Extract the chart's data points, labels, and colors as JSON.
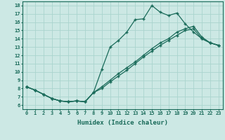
{
  "xlabel": "Humidex (Indice chaleur)",
  "bg_color": "#cce8e4",
  "line_color": "#1a6b5a",
  "grid_color": "#aad4ce",
  "xlim": [
    -0.5,
    23.5
  ],
  "ylim": [
    5.5,
    18.5
  ],
  "xticks": [
    0,
    1,
    2,
    3,
    4,
    5,
    6,
    7,
    8,
    9,
    10,
    11,
    12,
    13,
    14,
    15,
    16,
    17,
    18,
    19,
    20,
    21,
    22,
    23
  ],
  "yticks": [
    6,
    7,
    8,
    9,
    10,
    11,
    12,
    13,
    14,
    15,
    16,
    17,
    18
  ],
  "line1_x": [
    0,
    1,
    2,
    3,
    4,
    5,
    6,
    7,
    8,
    9,
    10,
    11,
    12,
    13,
    14,
    15,
    16,
    17,
    18,
    19,
    20,
    21,
    22,
    23
  ],
  "line1_y": [
    8.2,
    7.8,
    7.3,
    6.8,
    6.5,
    6.4,
    6.5,
    6.4,
    7.5,
    10.3,
    13.0,
    13.8,
    14.8,
    16.3,
    16.4,
    18.0,
    17.2,
    16.8,
    17.1,
    15.8,
    14.8,
    14.0,
    13.5,
    13.2
  ],
  "line2_x": [
    0,
    1,
    2,
    3,
    4,
    5,
    6,
    7,
    8,
    9,
    10,
    11,
    12,
    13,
    14,
    15,
    16,
    17,
    18,
    19,
    20,
    21,
    22,
    23
  ],
  "line2_y": [
    8.2,
    7.8,
    7.3,
    6.8,
    6.5,
    6.4,
    6.5,
    6.4,
    7.5,
    8.2,
    9.0,
    9.8,
    10.5,
    11.2,
    12.0,
    12.8,
    13.5,
    14.0,
    14.8,
    15.2,
    15.5,
    14.2,
    13.5,
    13.2
  ],
  "line3_x": [
    0,
    1,
    2,
    3,
    4,
    5,
    6,
    7,
    8,
    9,
    10,
    11,
    12,
    13,
    14,
    15,
    16,
    17,
    18,
    19,
    20,
    21,
    22,
    23
  ],
  "line3_y": [
    8.2,
    7.8,
    7.3,
    6.8,
    6.5,
    6.4,
    6.5,
    6.4,
    7.5,
    8.0,
    8.8,
    9.5,
    10.2,
    11.0,
    11.8,
    12.5,
    13.2,
    13.8,
    14.4,
    15.0,
    15.2,
    14.0,
    13.5,
    13.2
  ]
}
